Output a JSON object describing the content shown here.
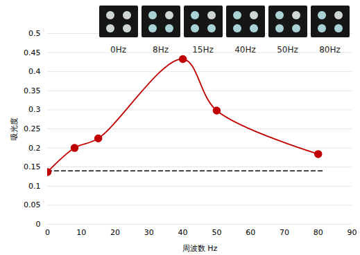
{
  "chart_data": {
    "type": "line",
    "x_label": "周波数 Hz",
    "y_label": "吸光度",
    "x": [
      0,
      8,
      15,
      40,
      50,
      80
    ],
    "values": [
      0.137,
      0.2,
      0.225,
      0.433,
      0.298,
      0.184
    ],
    "color": "#c00000",
    "marker": "circle",
    "line_style": "smooth",
    "xlim": [
      0,
      90
    ],
    "xticks": [
      0,
      10,
      20,
      30,
      40,
      50,
      60,
      70,
      80,
      90
    ],
    "ylim": [
      0,
      0.5
    ],
    "yticks": [
      0,
      0.05,
      0.1,
      0.15,
      0.2,
      0.25,
      0.3,
      0.35,
      0.4,
      0.45,
      0.5
    ],
    "grid": true,
    "baseline": {
      "value": 0.14,
      "x": [
        0,
        82
      ]
    },
    "image_labels": [
      "0Hz",
      "8Hz",
      "15Hz",
      "40Hz",
      "50Hz",
      "80Hz"
    ]
  }
}
